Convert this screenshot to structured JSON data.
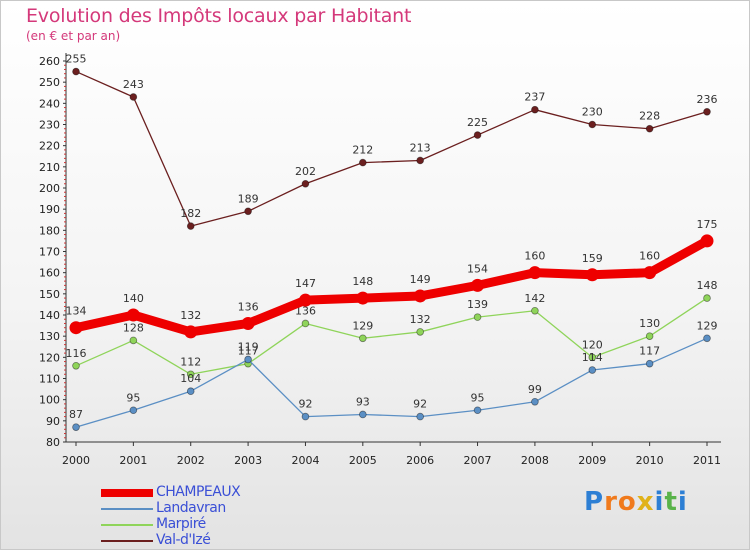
{
  "title": "Evolution des Impôts locaux par Habitant",
  "subtitle": "(en € et par an)",
  "logo": {
    "text": [
      "P",
      "r",
      "o",
      "x",
      "i",
      "t",
      "i"
    ],
    "colors": [
      "#2d7fd4",
      "#f07a1c",
      "#f07a1c",
      "#e0b21a",
      "#2d7fd4",
      "#59b34a",
      "#2d7fd4"
    ]
  },
  "chart_data": {
    "type": "line",
    "x": [
      2000,
      2001,
      2002,
      2003,
      2004,
      2005,
      2006,
      2007,
      2008,
      2009,
      2010,
      2011
    ],
    "x_tick_labels": [
      "2000",
      "2001",
      "2002",
      "2003",
      "2004",
      "2005",
      "2006",
      "2007",
      "2008",
      "2009",
      "2010",
      "2011"
    ],
    "y_ticks": [
      80,
      90,
      100,
      110,
      120,
      130,
      140,
      150,
      160,
      170,
      180,
      190,
      200,
      210,
      220,
      230,
      240,
      250,
      260
    ],
    "ylim": [
      80,
      260
    ],
    "grid": false,
    "legend_placement": "bottom-left",
    "series": [
      {
        "name": "Val-d'Izé",
        "color": "#6b1f1f",
        "values": [
          255,
          243,
          182,
          189,
          202,
          212,
          213,
          225,
          237,
          230,
          228,
          236
        ],
        "labels": [
          "255",
          "243",
          "182",
          "189",
          "202",
          "212",
          "213",
          "225",
          "237",
          "230",
          "228",
          "236"
        ]
      },
      {
        "name": "Marpiré",
        "color": "#8fd45a",
        "values": [
          116,
          128,
          112,
          117,
          136,
          129,
          132,
          139,
          142,
          120,
          130,
          148
        ],
        "labels": [
          "116",
          "128",
          "112",
          "117",
          "136",
          "129",
          "132",
          "139",
          "142",
          "120",
          "130",
          "148"
        ]
      },
      {
        "name": "Landavran",
        "color": "#5b8fc4",
        "values": [
          87,
          95,
          104,
          119,
          92,
          93,
          92,
          95,
          99,
          114,
          117,
          129
        ],
        "labels": [
          "87",
          "95",
          "104",
          "119",
          "92",
          "93",
          "92",
          "95",
          "99",
          "114",
          "117",
          "129"
        ]
      },
      {
        "name": "CHAMPEAUX",
        "color": "#ee0000",
        "values": [
          134,
          140,
          132,
          136,
          147,
          148,
          149,
          154,
          160,
          159,
          160,
          175
        ],
        "labels": [
          "134",
          "140",
          "132",
          "136",
          "147",
          "148",
          "149",
          "154",
          "160",
          "159",
          "160",
          "175"
        ]
      }
    ],
    "legend_order": [
      "CHAMPEAUX",
      "Landavran",
      "Marpiré",
      "Val-d'Izé"
    ]
  }
}
